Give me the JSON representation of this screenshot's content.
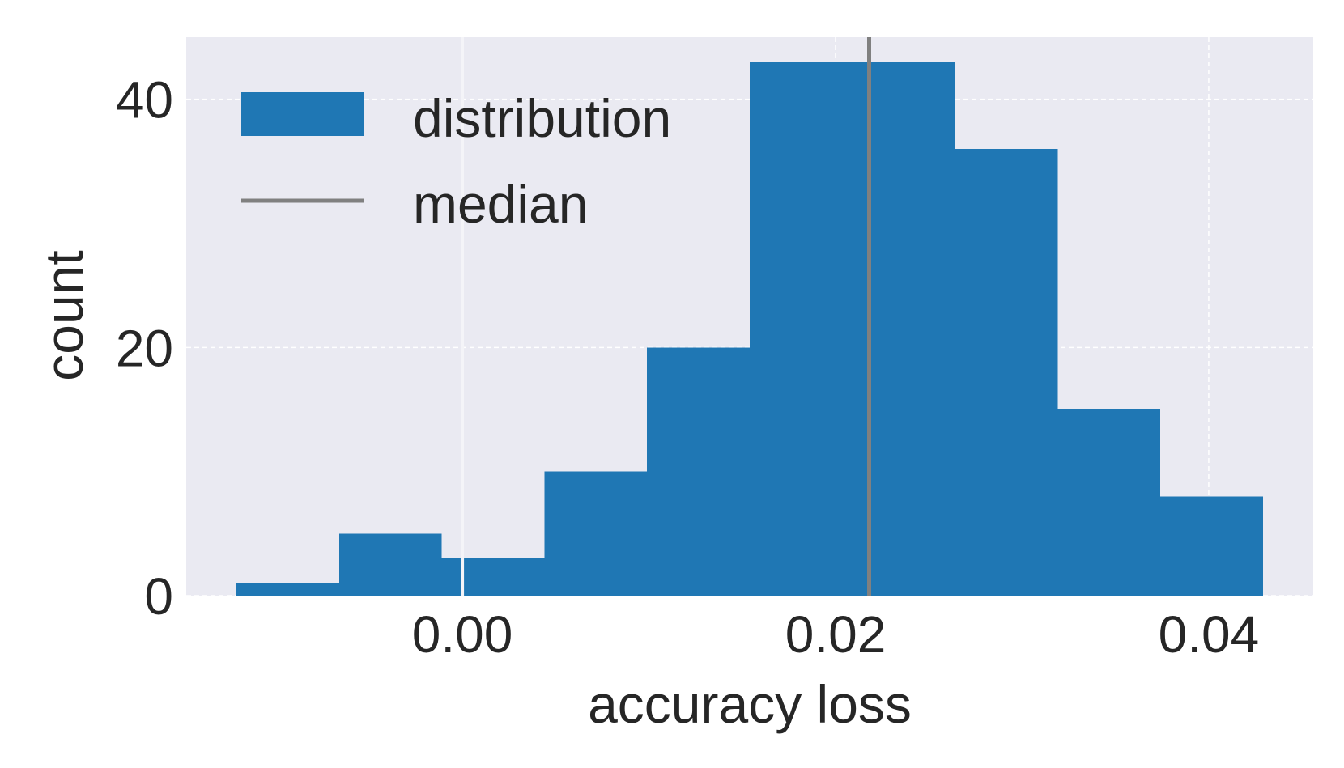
{
  "chart_data": {
    "type": "bar",
    "subtype": "histogram",
    "title": "",
    "xlabel": "accuracy loss",
    "ylabel": "count",
    "bin_edges": [
      -0.0121,
      -0.0066,
      -0.0011,
      0.0044,
      0.0099,
      0.0154,
      0.0209,
      0.0264,
      0.0319,
      0.0374,
      0.0429
    ],
    "counts": [
      1,
      5,
      3,
      10,
      20,
      43,
      43,
      36,
      15,
      8
    ],
    "series": [
      {
        "name": "distribution",
        "color": "#1f77b4"
      }
    ],
    "median": {
      "name": "median",
      "value": 0.0218,
      "color": "#808080"
    },
    "xlim": [
      -0.0148,
      0.0456
    ],
    "ylim": [
      0,
      45
    ],
    "xticks": [
      0.0,
      0.02,
      0.04
    ],
    "xtick_labels": [
      "0.00",
      "0.02",
      "0.04"
    ],
    "yticks": [
      0,
      20,
      40
    ],
    "ytick_labels": [
      "0",
      "20",
      "40"
    ],
    "grid": true,
    "legend_position": "top-left",
    "background_color": "#eaeaf2",
    "grid_color": "#ffffff"
  }
}
